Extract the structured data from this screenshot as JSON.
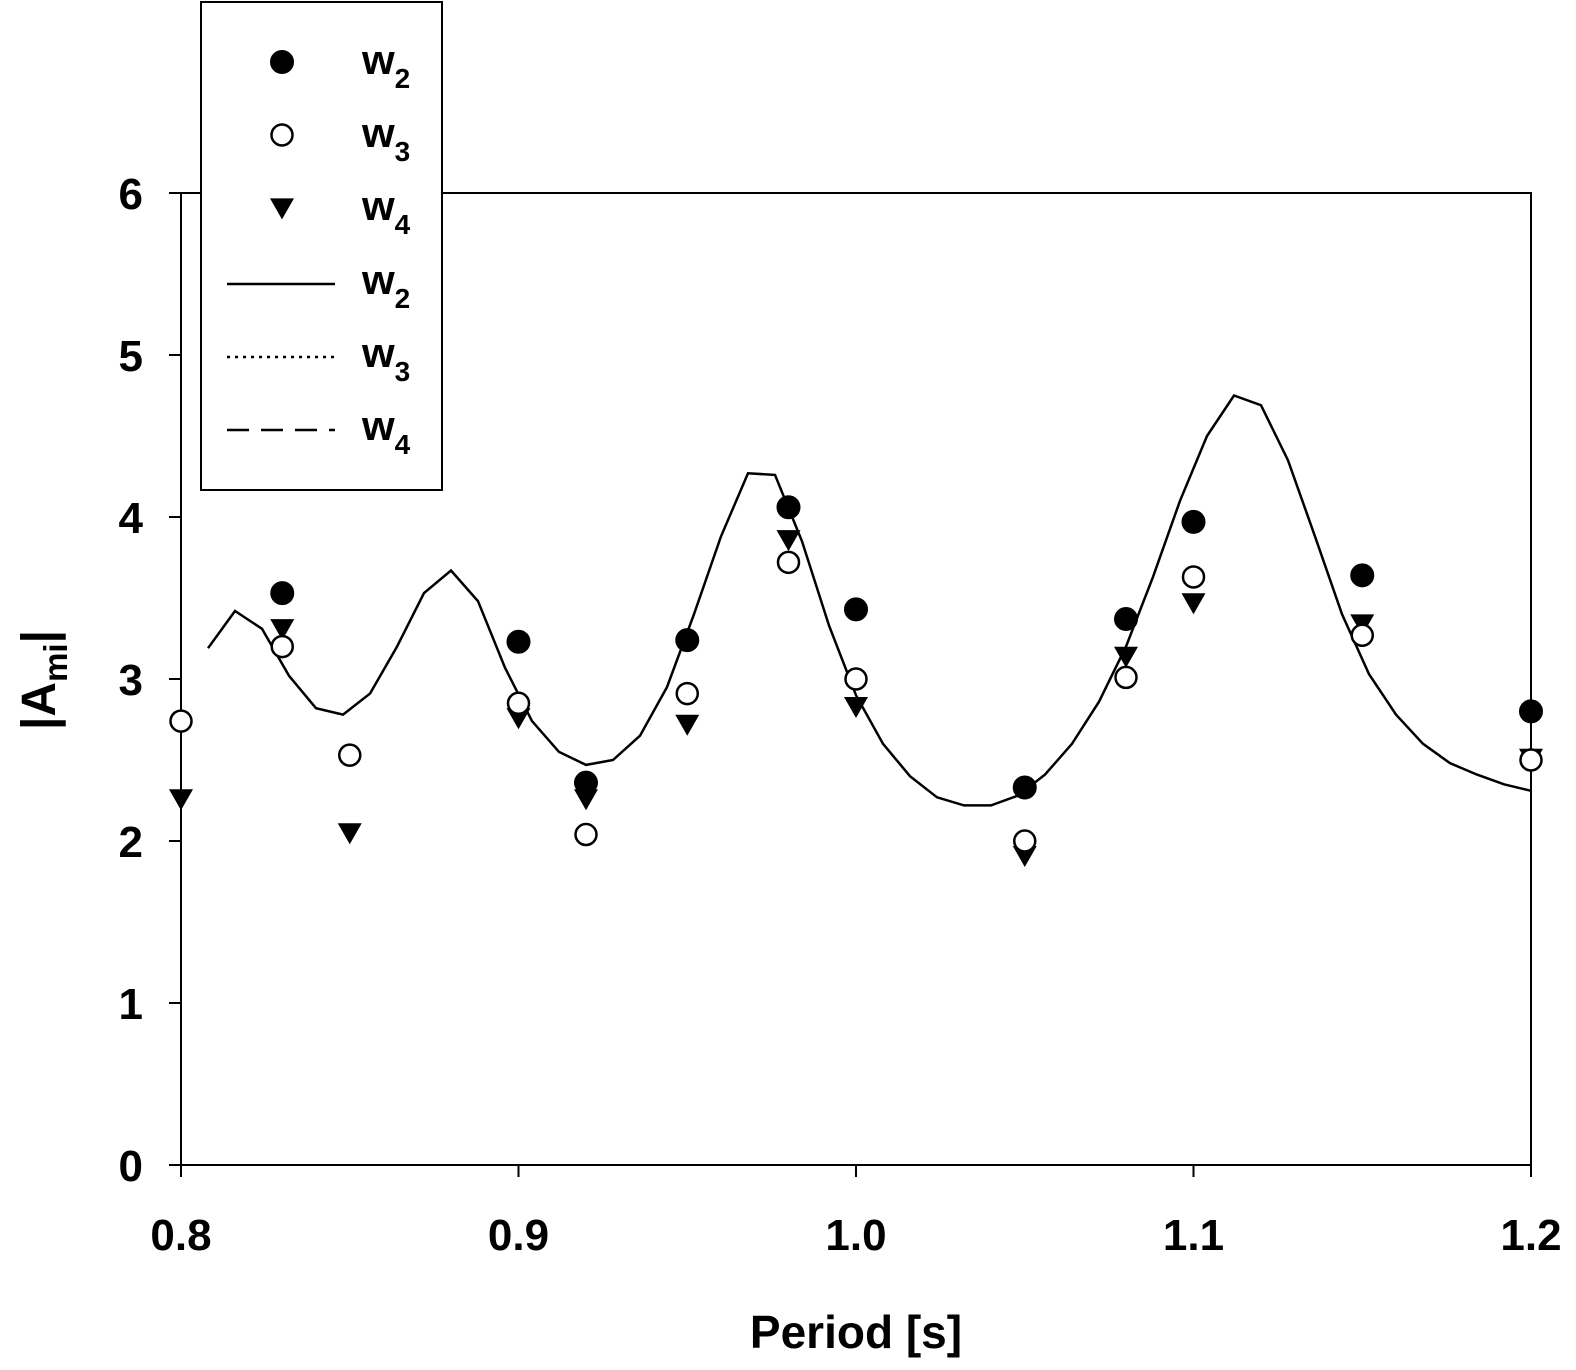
{
  "chart_data": {
    "type": "scatter",
    "title": "",
    "xlabel": "Period [s]",
    "ylabel_main": "|A",
    "ylabel_sub": "mi",
    "ylabel_end": "|",
    "xlim": [
      0.8,
      1.2
    ],
    "ylim": [
      0,
      6
    ],
    "xticks": [
      0.8,
      0.9,
      1.0,
      1.1,
      1.2
    ],
    "xtick_labels": [
      "0.8",
      "0.9",
      "1.0",
      "1.1",
      "1.2"
    ],
    "yticks": [
      0,
      1,
      2,
      3,
      4,
      5,
      6
    ],
    "ytick_labels": [
      "0",
      "1",
      "2",
      "3",
      "4",
      "5",
      "6"
    ],
    "grid": false,
    "legend_position": "top-left",
    "legend": [
      {
        "base": "w",
        "sub": "2",
        "marker": "filled-circle"
      },
      {
        "base": "w",
        "sub": "3",
        "marker": "open-circle"
      },
      {
        "base": "w",
        "sub": "4",
        "marker": "filled-triangle-down"
      },
      {
        "base": "w",
        "sub": "2",
        "line": "solid"
      },
      {
        "base": "w",
        "sub": "3",
        "line": "dotted"
      },
      {
        "base": "w",
        "sub": "4",
        "line": "dashed"
      }
    ],
    "markers": {
      "x": [
        0.8,
        0.83,
        0.85,
        0.9,
        0.92,
        0.95,
        0.98,
        1.0,
        1.05,
        1.08,
        1.1,
        1.15,
        1.2
      ],
      "w2": [
        null,
        3.53,
        null,
        3.23,
        2.36,
        3.24,
        4.06,
        3.43,
        2.33,
        3.37,
        3.97,
        3.64,
        2.8
      ],
      "w3": [
        2.74,
        3.2,
        2.53,
        2.85,
        2.04,
        2.91,
        3.72,
        3.0,
        2.0,
        3.01,
        3.63,
        3.27,
        2.5
      ],
      "w4": [
        2.26,
        3.31,
        2.05,
        2.76,
        2.26,
        2.72,
        3.86,
        2.83,
        1.91,
        3.14,
        3.47,
        3.34,
        2.51
      ]
    },
    "lines": {
      "x": [
        0.808,
        0.816,
        0.824,
        0.832,
        0.84,
        0.848,
        0.856,
        0.864,
        0.872,
        0.88,
        0.888,
        0.896,
        0.904,
        0.912,
        0.92,
        0.928,
        0.936,
        0.944,
        0.952,
        0.96,
        0.968,
        0.976,
        0.984,
        0.992,
        1.0,
        1.008,
        1.016,
        1.024,
        1.032,
        1.04,
        1.048,
        1.056,
        1.064,
        1.072,
        1.08,
        1.088,
        1.096,
        1.104,
        1.112,
        1.12,
        1.128,
        1.136,
        1.144,
        1.152,
        1.16,
        1.168,
        1.176,
        1.184,
        1.192,
        1.2
      ],
      "w2": [
        3.19,
        3.42,
        3.31,
        3.02,
        2.82,
        2.78,
        2.91,
        3.2,
        3.53,
        3.67,
        3.48,
        3.07,
        2.74,
        2.55,
        2.47,
        2.5,
        2.65,
        2.95,
        3.4,
        3.88,
        4.27,
        4.26,
        3.85,
        3.33,
        2.9,
        2.6,
        2.4,
        2.27,
        2.22,
        2.22,
        2.28,
        2.41,
        2.6,
        2.86,
        3.2,
        3.63,
        4.1,
        4.5,
        4.75,
        4.69,
        4.35,
        3.88,
        3.4,
        3.03,
        2.78,
        2.6,
        2.48,
        2.41,
        2.35,
        2.31
      ]
    }
  }
}
